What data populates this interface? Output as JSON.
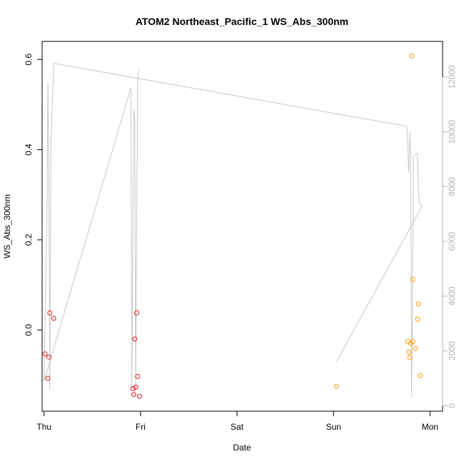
{
  "chart_data": {
    "type": "scatter",
    "title": "ATOM2 Northeast_Pacific_1 WS_Abs_300nm",
    "xlabel": "Date",
    "ylabel": "WS_Abs_300nm",
    "x_unit": "days since Thu 00:00",
    "xlim": [
      -0.02,
      4.13
    ],
    "ylim": [
      -0.18,
      0.64
    ],
    "y2lim": [
      -200,
      13300
    ],
    "x_ticks": [
      {
        "value": 0,
        "label": "Thu"
      },
      {
        "value": 1,
        "label": "Fri"
      },
      {
        "value": 2,
        "label": "Sat"
      },
      {
        "value": 3,
        "label": "Sun"
      },
      {
        "value": 4,
        "label": "Mon"
      }
    ],
    "y_ticks": [
      {
        "value": 0.0,
        "label": "0.0"
      },
      {
        "value": 0.2,
        "label": "0.2"
      },
      {
        "value": 0.4,
        "label": "0.4"
      },
      {
        "value": 0.6,
        "label": "0.6"
      }
    ],
    "y2_ticks": [
      {
        "value": 0,
        "label": "0"
      },
      {
        "value": 2000,
        "label": "2000"
      },
      {
        "value": 4000,
        "label": "4000"
      },
      {
        "value": 6000,
        "label": "6000"
      },
      {
        "value": 8000,
        "label": "8000"
      },
      {
        "value": 10000,
        "label": "10000"
      },
      {
        "value": 12000,
        "label": "12000"
      }
    ],
    "series": [
      {
        "color": "#e41a1c",
        "points": [
          {
            "x": 0.01,
            "y": -0.053
          },
          {
            "x": 0.04,
            "y": -0.107
          },
          {
            "x": 0.05,
            "y": -0.06
          },
          {
            "x": 0.06,
            "y": 0.038
          },
          {
            "x": 0.1,
            "y": 0.026
          },
          {
            "x": 0.92,
            "y": -0.13
          },
          {
            "x": 0.93,
            "y": -0.143
          },
          {
            "x": 0.94,
            "y": -0.02
          },
          {
            "x": 0.95,
            "y": -0.127
          },
          {
            "x": 0.96,
            "y": 0.038
          },
          {
            "x": 0.97,
            "y": -0.103
          },
          {
            "x": 0.99,
            "y": -0.147
          }
        ]
      },
      {
        "color": "#ff9900",
        "points": [
          {
            "x": 3.03,
            "y": -0.125
          },
          {
            "x": 3.77,
            "y": -0.025
          },
          {
            "x": 3.78,
            "y": -0.049
          },
          {
            "x": 3.79,
            "y": -0.061
          },
          {
            "x": 3.8,
            "y": -0.03
          },
          {
            "x": 3.81,
            "y": 0.608
          },
          {
            "x": 3.82,
            "y": 0.112
          },
          {
            "x": 3.82,
            "y": -0.026
          },
          {
            "x": 3.85,
            "y": -0.041
          },
          {
            "x": 3.87,
            "y": 0.024
          },
          {
            "x": 3.88,
            "y": 0.058
          },
          {
            "x": 3.9,
            "y": -0.101
          }
        ]
      }
    ],
    "line_series": {
      "axis": "right",
      "color": "#c8c8c8",
      "points": [
        {
          "x": 0.0,
          "y": 900
        },
        {
          "x": 0.03,
          "y": 7000
        },
        {
          "x": 0.04,
          "y": 11800
        },
        {
          "x": 0.05,
          "y": 8000
        },
        {
          "x": 0.06,
          "y": 600
        },
        {
          "x": 0.07,
          "y": 9500
        },
        {
          "x": 0.1,
          "y": 12500
        },
        {
          "x": 3.76,
          "y": 10200
        },
        {
          "x": 3.77,
          "y": 9300
        },
        {
          "x": 3.78,
          "y": 8500
        },
        {
          "x": 3.79,
          "y": 10000
        },
        {
          "x": 3.8,
          "y": 9000
        },
        {
          "x": 3.81,
          "y": 300
        },
        {
          "x": 3.83,
          "y": 9100
        },
        {
          "x": 3.86,
          "y": 9200
        },
        {
          "x": 3.87,
          "y": 9200
        },
        {
          "x": 3.88,
          "y": 7800
        },
        {
          "x": 3.89,
          "y": 7400
        },
        {
          "x": 3.92,
          "y": 7300
        },
        {
          "x": 3.03,
          "y": 1600
        },
        {
          "x": 3.03,
          "y": 1600
        }
      ],
      "segment2": [
        {
          "x": 0.0,
          "y": 900
        },
        {
          "x": 0.9,
          "y": 11600
        },
        {
          "x": 0.91,
          "y": 600
        },
        {
          "x": 0.93,
          "y": 10800
        },
        {
          "x": 0.94,
          "y": 10500
        },
        {
          "x": 0.95,
          "y": 600
        },
        {
          "x": 0.97,
          "y": 11800
        },
        {
          "x": 0.98,
          "y": 12300
        }
      ]
    }
  }
}
